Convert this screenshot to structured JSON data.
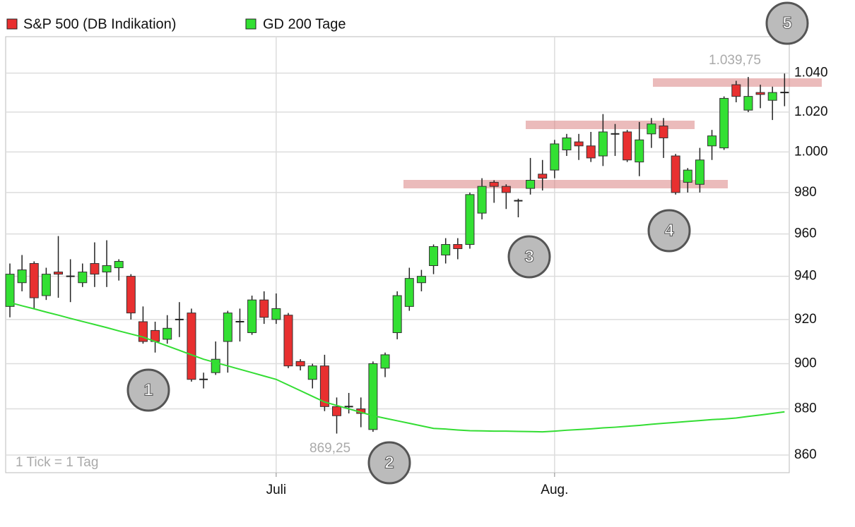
{
  "chart_data": {
    "type": "candlestick",
    "log_scale": true,
    "grid": true,
    "legend_position": "top-left",
    "categories": [
      null,
      null,
      null,
      null,
      null,
      null,
      null,
      null,
      null,
      null,
      null,
      null,
      null,
      null,
      null,
      null,
      null,
      null,
      null,
      null,
      null,
      null,
      "Juli",
      null,
      null,
      null,
      null,
      null,
      null,
      null,
      null,
      null,
      null,
      null,
      null,
      null,
      null,
      null,
      null,
      null,
      null,
      null,
      null,
      null,
      null,
      "Aug.",
      null,
      null,
      null,
      null,
      null,
      null,
      null,
      null,
      null,
      null,
      null,
      null,
      null,
      null,
      null,
      null,
      null,
      null,
      null
    ],
    "ylim": [
      852.5,
      1059
    ],
    "yticks": [
      860,
      880,
      900,
      920,
      940,
      960,
      980,
      {
        "value": 1000,
        "label": "1.000"
      },
      {
        "value": 1020,
        "label": "1.020"
      },
      {
        "value": 1040,
        "label": "1.040"
      }
    ],
    "series": [
      {
        "name": "S&P 500 (DB Indikation)",
        "type": "candlestick",
        "color": "#e83030",
        "up_color": "#33e033",
        "open": [
          926,
          937,
          946,
          931,
          942,
          940,
          937,
          946,
          942,
          944,
          940,
          919,
          915,
          911,
          920,
          923,
          893,
          896,
          910,
          919,
          914,
          929,
          920,
          922,
          901,
          893,
          899,
          881,
          881,
          880,
          871,
          898,
          914,
          926,
          937,
          945,
          950,
          955,
          955,
          970,
          985,
          983,
          976,
          982,
          989,
          991,
          1001,
          1005,
          1003,
          998,
          1009,
          1010,
          995,
          1009,
          1013,
          998,
          985,
          984,
          1003,
          1002,
          1034,
          1021,
          1030,
          1026,
          1030
        ],
        "high": [
          946,
          950,
          947,
          944,
          959,
          948,
          946,
          956,
          957,
          948,
          941,
          926,
          919,
          922,
          928,
          925,
          896,
          910,
          924,
          925,
          931,
          933,
          932,
          923,
          902,
          900,
          904,
          885,
          887,
          885,
          901,
          905,
          933,
          944,
          943,
          955,
          958,
          958,
          980,
          987,
          986,
          984,
          977,
          997,
          996,
          1006,
          1009,
          1009,
          1010,
          1019,
          1014,
          1011,
          1015,
          1017,
          1017,
          999,
          992,
          1002,
          1011,
          1028,
          1036,
          1038,
          1034,
          1033,
          1039.75
        ],
        "low": [
          921,
          933,
          925,
          929,
          930,
          928,
          935,
          935,
          935,
          938,
          920,
          909,
          905,
          909,
          912,
          892,
          889,
          895,
          896,
          910,
          913,
          918,
          918,
          898,
          897,
          889,
          879,
          869.25,
          878,
          872,
          870,
          894,
          911,
          924,
          933,
          941,
          946,
          948,
          953,
          967,
          975,
          972,
          968,
          979,
          981,
          987,
          998,
          996,
          995,
          993,
          998,
          995,
          988,
          1002,
          997,
          979,
          980,
          980,
          996,
          1001,
          1025,
          1020,
          1022,
          1016,
          1023
        ],
        "close": [
          941,
          943,
          930,
          941,
          941,
          940,
          942,
          941,
          945,
          947,
          923,
          910,
          910,
          916,
          920,
          893,
          893,
          902,
          923,
          919,
          929,
          921,
          925,
          899,
          899,
          899,
          881,
          877,
          881,
          878,
          900,
          904,
          931,
          939,
          940,
          954,
          955,
          953,
          979,
          983,
          983,
          980,
          976,
          986,
          987,
          1004,
          1007,
          1003,
          997,
          1010,
          1009,
          996,
          1006,
          1014,
          1007,
          980,
          991,
          996,
          1008,
          1027,
          1028,
          1028,
          1029,
          1030,
          1030
        ]
      },
      {
        "name": "GD 200 Tage",
        "type": "line",
        "color": "#33dd33",
        "values": [
          927.8,
          926.3,
          924.9,
          923.4,
          922,
          920.5,
          919.1,
          917.7,
          916.3,
          914.8,
          913.4,
          912,
          910,
          908,
          906,
          904,
          902,
          900.5,
          899,
          897.5,
          896,
          894.5,
          893,
          890.5,
          888,
          885.5,
          883,
          881.5,
          880,
          878.5,
          877,
          875.9,
          874.8,
          873.7,
          872.6,
          871.5,
          871.2,
          870.8,
          870.5,
          870.4,
          870.3,
          870.3,
          870.2,
          870.1,
          870,
          870.3,
          870.7,
          871,
          871.3,
          871.7,
          872,
          872.4,
          872.8,
          873.3,
          873.7,
          874.1,
          874.5,
          874.9,
          875.3,
          875.6,
          876,
          876.7,
          877.3,
          878,
          878.7
        ]
      }
    ],
    "annotations": [
      "1.039,75",
      "869,25"
    ],
    "note": "1 Tick = 1 Tag",
    "markers": [
      "1",
      "2",
      "3",
      "4",
      "5"
    ]
  }
}
